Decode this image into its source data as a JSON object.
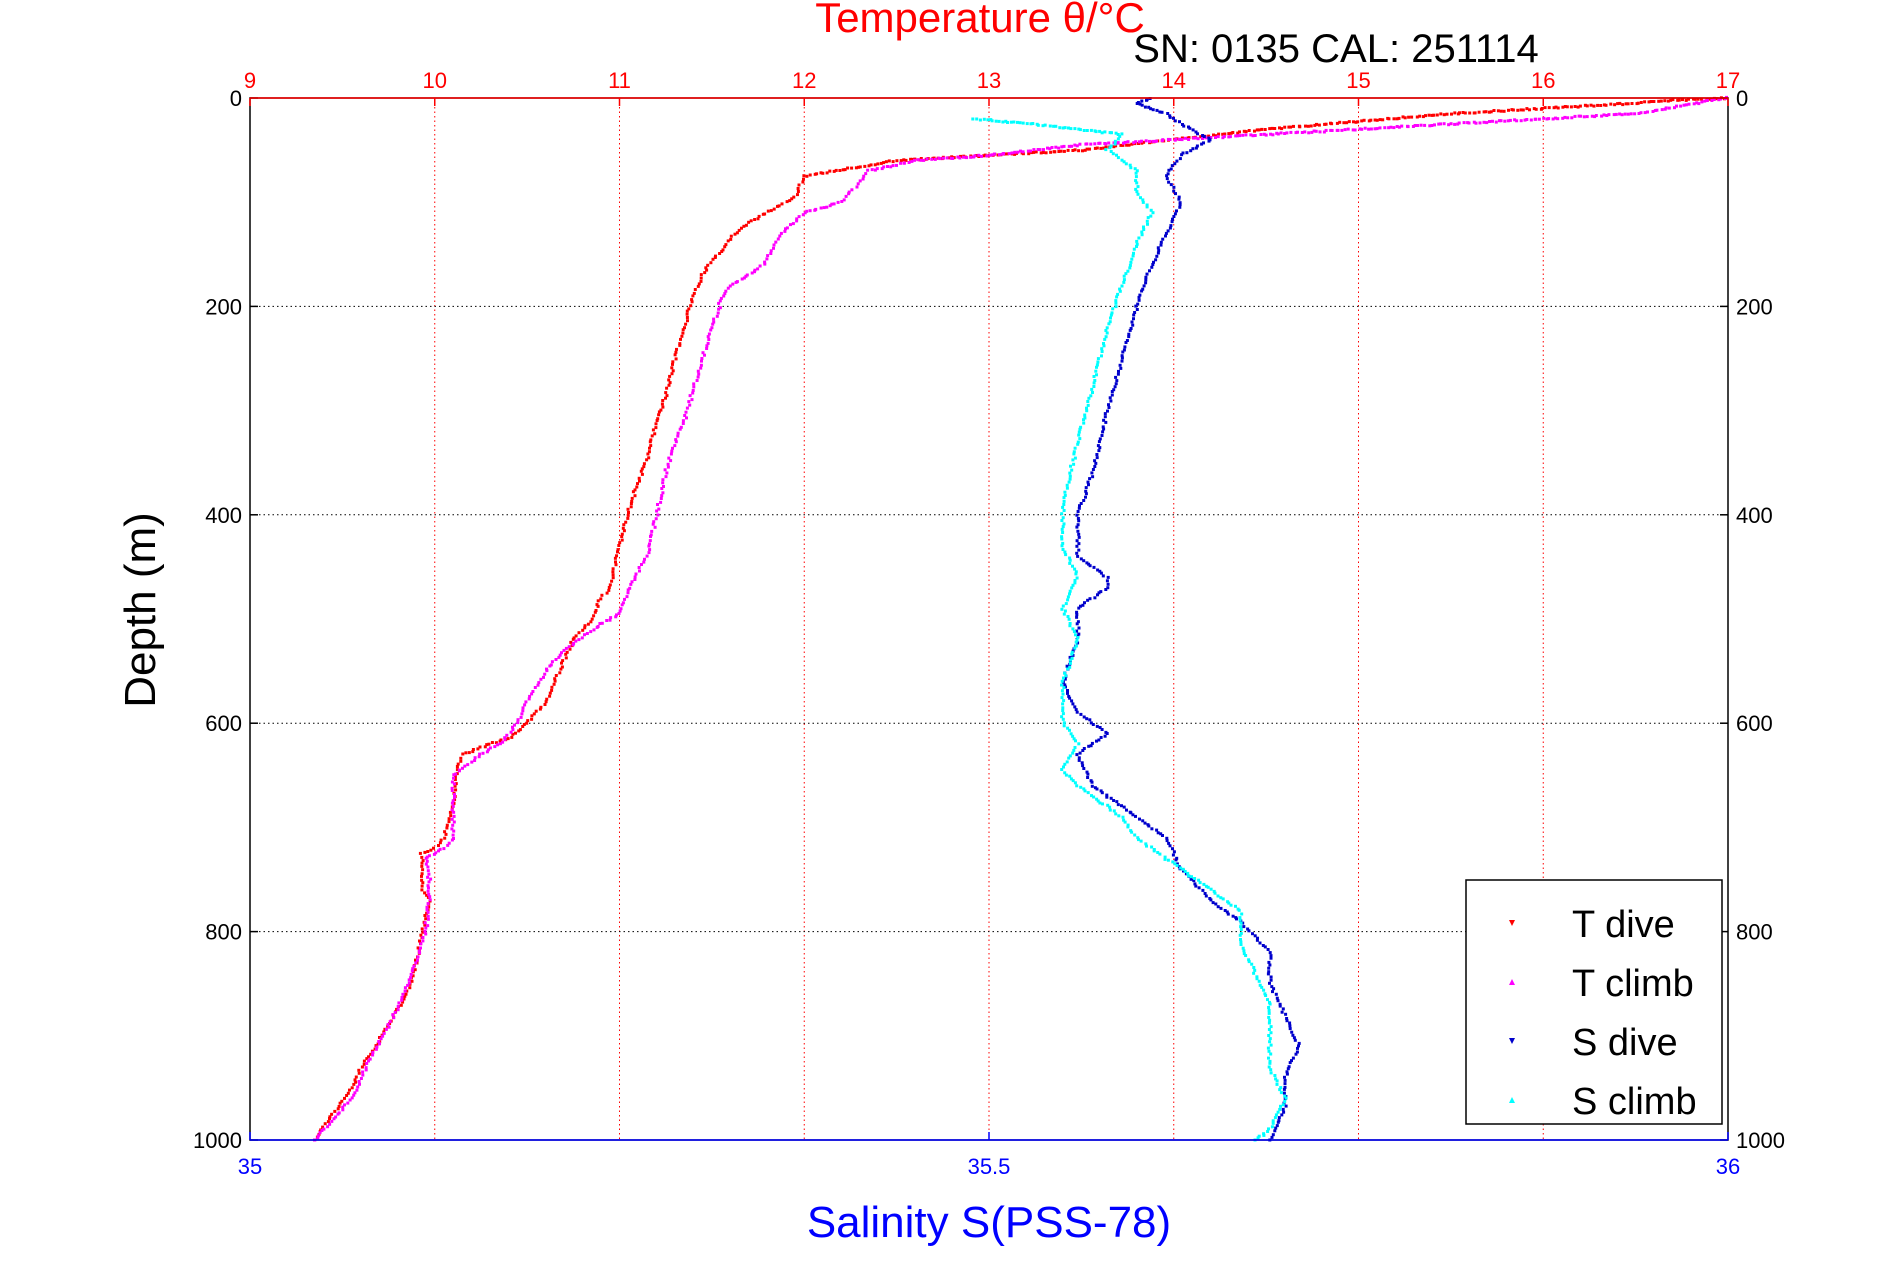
{
  "chart_data": {
    "type": "scatter",
    "title": "Temperature θ/°C",
    "subtitle": "SN: 0135  CAL: 251114",
    "xlabel_bottom": "Salinity S(PSS-78)",
    "xlabel_top": "Temperature θ/°C",
    "ylabel": "Depth (m)",
    "temperature_axis": {
      "range": [
        9,
        17
      ],
      "ticks": [
        "9",
        "10",
        "11",
        "12",
        "13",
        "14",
        "15",
        "16",
        "17"
      ]
    },
    "salinity_axis": {
      "range": [
        35,
        36
      ],
      "ticks": [
        "35",
        "35.5",
        "36"
      ]
    },
    "depth_axis": {
      "range": [
        0,
        1000
      ],
      "inverted": true,
      "ticks": [
        "0",
        "200",
        "400",
        "600",
        "800",
        "1000"
      ]
    },
    "grid": true,
    "legend_position": "bottom-right",
    "colors": {
      "t_dive": "#ff0000",
      "t_climb": "#ff00ff",
      "s_dive": "#0000cc",
      "s_climb": "#00ffff",
      "axis_top": "#ff0000",
      "axis_bottom": "#0000ff"
    },
    "series": [
      {
        "name": "T dive",
        "axis": "temperature",
        "color": "#ff0000",
        "points": [
          [
            17,
            0
          ],
          [
            16.6,
            3
          ],
          [
            16.5,
            5
          ],
          [
            15.5,
            15
          ],
          [
            14.5,
            30
          ],
          [
            14,
            40
          ],
          [
            13.5,
            50
          ],
          [
            13,
            55
          ],
          [
            12.5,
            60
          ],
          [
            12,
            75
          ],
          [
            11.95,
            95
          ],
          [
            11.9,
            100
          ],
          [
            11.7,
            120
          ],
          [
            11.6,
            135
          ],
          [
            11.55,
            148
          ],
          [
            11.5,
            155
          ],
          [
            11.45,
            170
          ],
          [
            11.4,
            190
          ],
          [
            11.35,
            220
          ],
          [
            11.3,
            250
          ],
          [
            11.25,
            285
          ],
          [
            11.2,
            310
          ],
          [
            11.15,
            345
          ],
          [
            11.1,
            370
          ],
          [
            11.05,
            395
          ],
          [
            11,
            430
          ],
          [
            10.95,
            470
          ],
          [
            10.9,
            480
          ],
          [
            10.85,
            500
          ],
          [
            10.75,
            520
          ],
          [
            10.7,
            540
          ],
          [
            10.65,
            560
          ],
          [
            10.6,
            580
          ],
          [
            10.5,
            600
          ],
          [
            10.4,
            615
          ],
          [
            10.3,
            620
          ],
          [
            10.15,
            630
          ],
          [
            10.12,
            645
          ],
          [
            10.1,
            680
          ],
          [
            10.05,
            710
          ],
          [
            10,
            720
          ],
          [
            9.93,
            725
          ],
          [
            9.93,
            760
          ],
          [
            9.97,
            770
          ],
          [
            9.93,
            800
          ],
          [
            9.9,
            830
          ],
          [
            9.85,
            860
          ],
          [
            9.78,
            880
          ],
          [
            9.7,
            905
          ],
          [
            9.62,
            925
          ],
          [
            9.55,
            950
          ],
          [
            9.45,
            975
          ],
          [
            9.35,
            1000
          ]
        ]
      },
      {
        "name": "T climb",
        "axis": "temperature",
        "color": "#ff00ff",
        "points": [
          [
            17,
            0
          ],
          [
            16.5,
            15
          ],
          [
            15.5,
            25
          ],
          [
            14.5,
            35
          ],
          [
            13.5,
            45
          ],
          [
            13,
            55
          ],
          [
            12.6,
            60
          ],
          [
            12.35,
            70
          ],
          [
            12.28,
            85
          ],
          [
            12.25,
            90
          ],
          [
            12.2,
            100
          ],
          [
            12,
            110
          ],
          [
            11.88,
            130
          ],
          [
            11.78,
            160
          ],
          [
            11.7,
            170
          ],
          [
            11.6,
            180
          ],
          [
            11.55,
            195
          ],
          [
            11.5,
            220
          ],
          [
            11.45,
            250
          ],
          [
            11.4,
            280
          ],
          [
            11.35,
            310
          ],
          [
            11.3,
            330
          ],
          [
            11.25,
            360
          ],
          [
            11.2,
            400
          ],
          [
            11.15,
            440
          ],
          [
            11.05,
            470
          ],
          [
            11,
            495
          ],
          [
            10.9,
            505
          ],
          [
            10.7,
            530
          ],
          [
            10.6,
            550
          ],
          [
            10.5,
            580
          ],
          [
            10.45,
            600
          ],
          [
            10.35,
            620
          ],
          [
            10.25,
            630
          ],
          [
            10.1,
            650
          ],
          [
            10.1,
            680
          ],
          [
            10.1,
            710
          ],
          [
            10.05,
            720
          ],
          [
            9.95,
            730
          ],
          [
            9.97,
            750
          ],
          [
            9.97,
            770
          ],
          [
            9.95,
            800
          ],
          [
            9.9,
            830
          ],
          [
            9.83,
            860
          ],
          [
            9.78,
            880
          ],
          [
            9.72,
            900
          ],
          [
            9.63,
            930
          ],
          [
            9.55,
            960
          ],
          [
            9.45,
            980
          ],
          [
            9.35,
            1000
          ]
        ]
      },
      {
        "name": "S dive",
        "axis": "salinity",
        "color": "#0000cc",
        "points": [
          [
            35.61,
            0
          ],
          [
            35.6,
            5
          ],
          [
            35.62,
            15
          ],
          [
            35.63,
            25
          ],
          [
            35.65,
            40
          ],
          [
            35.63,
            55
          ],
          [
            35.62,
            75
          ],
          [
            35.63,
            100
          ],
          [
            35.62,
            130
          ],
          [
            35.61,
            160
          ],
          [
            35.6,
            200
          ],
          [
            35.59,
            250
          ],
          [
            35.58,
            300
          ],
          [
            35.57,
            360
          ],
          [
            35.56,
            400
          ],
          [
            35.56,
            440
          ],
          [
            35.58,
            460
          ],
          [
            35.58,
            470
          ],
          [
            35.56,
            490
          ],
          [
            35.56,
            520
          ],
          [
            35.55,
            560
          ],
          [
            35.56,
            590
          ],
          [
            35.58,
            610
          ],
          [
            35.56,
            630
          ],
          [
            35.57,
            660
          ],
          [
            35.6,
            690
          ],
          [
            35.62,
            710
          ],
          [
            35.63,
            740
          ],
          [
            35.65,
            770
          ],
          [
            35.67,
            790
          ],
          [
            35.69,
            820
          ],
          [
            35.69,
            850
          ],
          [
            35.7,
            880
          ],
          [
            35.71,
            910
          ],
          [
            35.7,
            940
          ],
          [
            35.7,
            970
          ],
          [
            35.69,
            1000
          ]
        ]
      },
      {
        "name": "S climb",
        "axis": "salinity",
        "color": "#00ffff",
        "points": [
          [
            35.49,
            20
          ],
          [
            35.53,
            25
          ],
          [
            35.56,
            30
          ],
          [
            35.59,
            35
          ],
          [
            35.58,
            50
          ],
          [
            35.6,
            70
          ],
          [
            35.6,
            90
          ],
          [
            35.61,
            110
          ],
          [
            35.6,
            140
          ],
          [
            35.59,
            180
          ],
          [
            35.58,
            220
          ],
          [
            35.57,
            280
          ],
          [
            35.56,
            330
          ],
          [
            35.55,
            390
          ],
          [
            35.55,
            430
          ],
          [
            35.56,
            460
          ],
          [
            35.55,
            490
          ],
          [
            35.56,
            520
          ],
          [
            35.55,
            560
          ],
          [
            35.55,
            600
          ],
          [
            35.56,
            620
          ],
          [
            35.55,
            645
          ],
          [
            35.56,
            660
          ],
          [
            35.59,
            690
          ],
          [
            35.6,
            710
          ],
          [
            35.62,
            730
          ],
          [
            35.65,
            760
          ],
          [
            35.67,
            780
          ],
          [
            35.67,
            810
          ],
          [
            35.68,
            840
          ],
          [
            35.69,
            870
          ],
          [
            35.69,
            900
          ],
          [
            35.69,
            930
          ],
          [
            35.7,
            960
          ],
          [
            35.69,
            990
          ],
          [
            35.68,
            1000
          ]
        ]
      }
    ]
  }
}
